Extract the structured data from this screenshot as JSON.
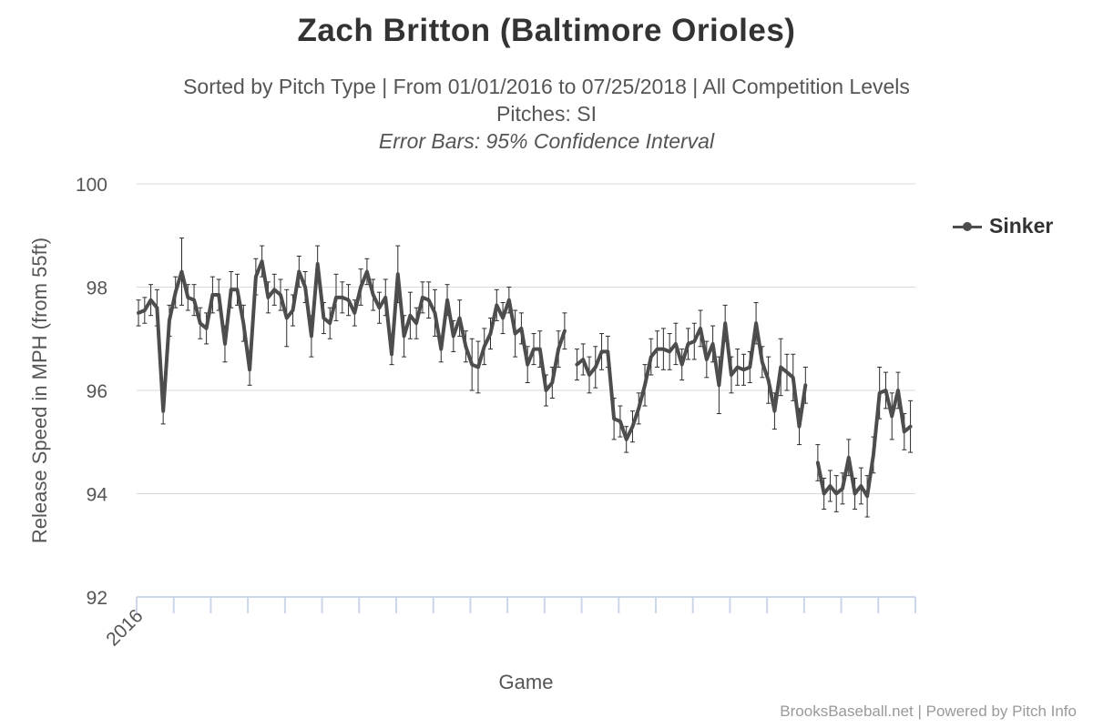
{
  "title": "Zach Britton (Baltimore Orioles)",
  "subtitle_line1": "Sorted by Pitch Type | From 01/01/2016 to 07/25/2018 | All Competition Levels",
  "subtitle_line2": "Pitches: SI",
  "subtitle_line3": "Error Bars: 95% Confidence Interval",
  "credits": "BrooksBaseball.net | Powered by Pitch Info",
  "colors": {
    "series": "#4d4d4d",
    "grid": "#d8d8d8",
    "axis": "#ccd6eb",
    "text": "#555555"
  },
  "chart_data": {
    "type": "line",
    "title": "Zach Britton (Baltimore Orioles)",
    "xlabel": "Game",
    "ylabel": "Release Speed in MPH (from 55ft)",
    "ylim": [
      92,
      100
    ],
    "yticks": [
      92,
      94,
      96,
      98,
      100
    ],
    "x_tick_labels": [
      "2016"
    ],
    "grid": true,
    "legend_position": "top-right",
    "error_bars": "95% Confidence Interval",
    "series": [
      {
        "name": "Sinker",
        "segments": [
          {
            "start_game": 1,
            "values": [
              97.5,
              97.55,
              97.75,
              97.6,
              95.6,
              97.35,
              97.9,
              98.3,
              97.8,
              97.75,
              97.3,
              97.2,
              97.85,
              97.85,
              96.9,
              97.95,
              97.95,
              97.3,
              96.4,
              98.2,
              98.5,
              97.8,
              97.95,
              97.85,
              97.4,
              97.55,
              98.3,
              98.0,
              97.05,
              98.45,
              97.4,
              97.3,
              97.8,
              97.8,
              97.75,
              97.5,
              98.0,
              98.3,
              97.85,
              97.6,
              97.8,
              96.7,
              98.25,
              97.05,
              97.45,
              97.3,
              97.8,
              97.75,
              97.5,
              96.8,
              97.75,
              97.05,
              97.4,
              96.85,
              96.5,
              96.45,
              96.85,
              97.1,
              97.65,
              97.4,
              97.75,
              97.1,
              97.2,
              96.5,
              96.8,
              96.8,
              96.0,
              96.15,
              96.8,
              97.15
            ],
            "error": [
              0.25,
              0.25,
              0.3,
              0.35,
              0.25,
              0.3,
              0.3,
              0.65,
              0.25,
              0.3,
              0.3,
              0.3,
              0.35,
              0.3,
              0.35,
              0.35,
              0.3,
              0.35,
              0.3,
              0.35,
              0.3,
              0.3,
              0.3,
              0.3,
              0.55,
              0.3,
              0.3,
              0.3,
              0.4,
              0.35,
              0.3,
              0.3,
              0.45,
              0.3,
              0.3,
              0.25,
              0.35,
              0.25,
              0.3,
              0.3,
              0.35,
              0.2,
              0.55,
              0.4,
              0.45,
              0.3,
              0.3,
              0.35,
              0.45,
              0.25,
              0.3,
              0.3,
              0.35,
              0.3,
              0.5,
              0.5,
              0.35,
              0.3,
              0.3,
              0.3,
              0.25,
              0.45,
              0.3,
              0.35,
              0.3,
              0.35,
              0.3,
              0.3,
              0.35,
              0.35
            ]
          },
          {
            "start_game": 72,
            "values": [
              96.5,
              96.6,
              96.3,
              96.45,
              96.75,
              96.75,
              95.45,
              95.4,
              95.05,
              95.3,
              95.65,
              96.1,
              96.65,
              96.8,
              96.8,
              96.75,
              96.9,
              96.5,
              96.9,
              96.95,
              97.2,
              96.6,
              96.9,
              96.1,
              97.3,
              96.3,
              96.45,
              96.4,
              96.45,
              97.3,
              96.55,
              96.2,
              95.6,
              96.45,
              96.35,
              96.25,
              95.3,
              96.1
            ],
            "error": [
              0.3,
              0.3,
              0.35,
              0.4,
              0.35,
              0.3,
              0.4,
              0.3,
              0.25,
              0.3,
              0.3,
              0.4,
              0.35,
              0.35,
              0.4,
              0.35,
              0.4,
              0.3,
              0.3,
              0.35,
              0.35,
              0.35,
              0.35,
              0.55,
              0.35,
              0.35,
              0.35,
              0.3,
              0.3,
              0.4,
              0.3,
              0.45,
              0.35,
              0.55,
              0.35,
              0.45,
              0.35,
              0.35
            ]
          },
          {
            "start_game": 111,
            "values": [
              94.6,
              94.0,
              94.15,
              94.0,
              94.1,
              94.7,
              94.0,
              94.15,
              93.95,
              94.75,
              95.95,
              96.0,
              95.5,
              96.0,
              95.2,
              95.3
            ],
            "error": [
              0.35,
              0.3,
              0.3,
              0.35,
              0.3,
              0.35,
              0.3,
              0.35,
              0.4,
              0.35,
              0.5,
              0.35,
              0.45,
              0.35,
              0.35,
              0.5
            ]
          }
        ]
      }
    ]
  }
}
